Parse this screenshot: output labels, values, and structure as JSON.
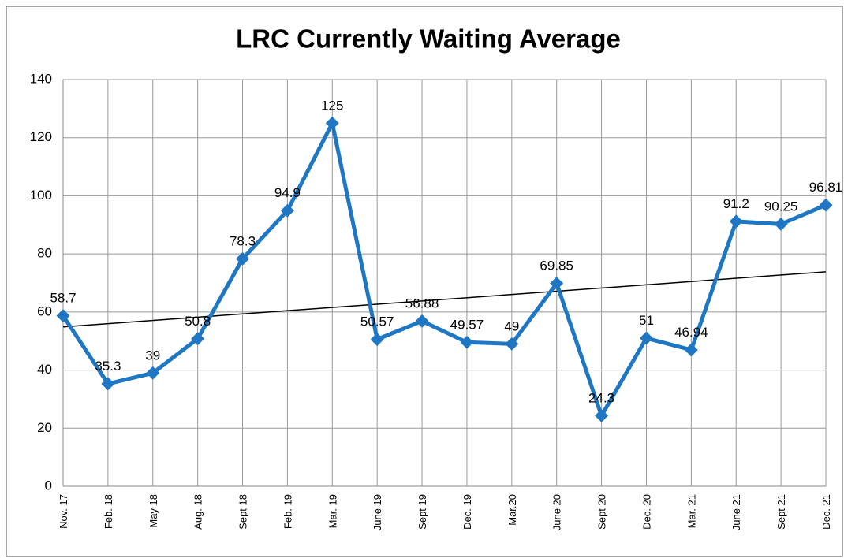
{
  "chart_data": {
    "type": "line",
    "title": "LRC Currently Waiting Average",
    "categories": [
      "Nov. 17",
      "Feb. 18",
      "May 18",
      "Aug. 18",
      "Sept 18",
      "Feb. 19",
      "Mar. 19",
      "June 19",
      "Sept 19",
      "Dec. 19",
      "Mar.20",
      "June 20",
      "Sept 20",
      "Dec. 20",
      "Mar. 21",
      "June 21",
      "Sept 21",
      "Dec. 21"
    ],
    "series": [
      {
        "name": "LRC Currently Waiting Average",
        "color": "#1f77c4",
        "values": [
          58.7,
          35.3,
          39,
          50.8,
          78.3,
          94.9,
          125,
          50.57,
          56.88,
          49.57,
          49,
          69.85,
          24.3,
          51,
          46.94,
          91.2,
          90.25,
          96.81
        ]
      }
    ],
    "ylim": [
      0,
      140
    ],
    "yticks": [
      0,
      20,
      40,
      60,
      80,
      100,
      120,
      140
    ],
    "grid": true,
    "trendline": "linear",
    "trendline_color": "#000000"
  }
}
